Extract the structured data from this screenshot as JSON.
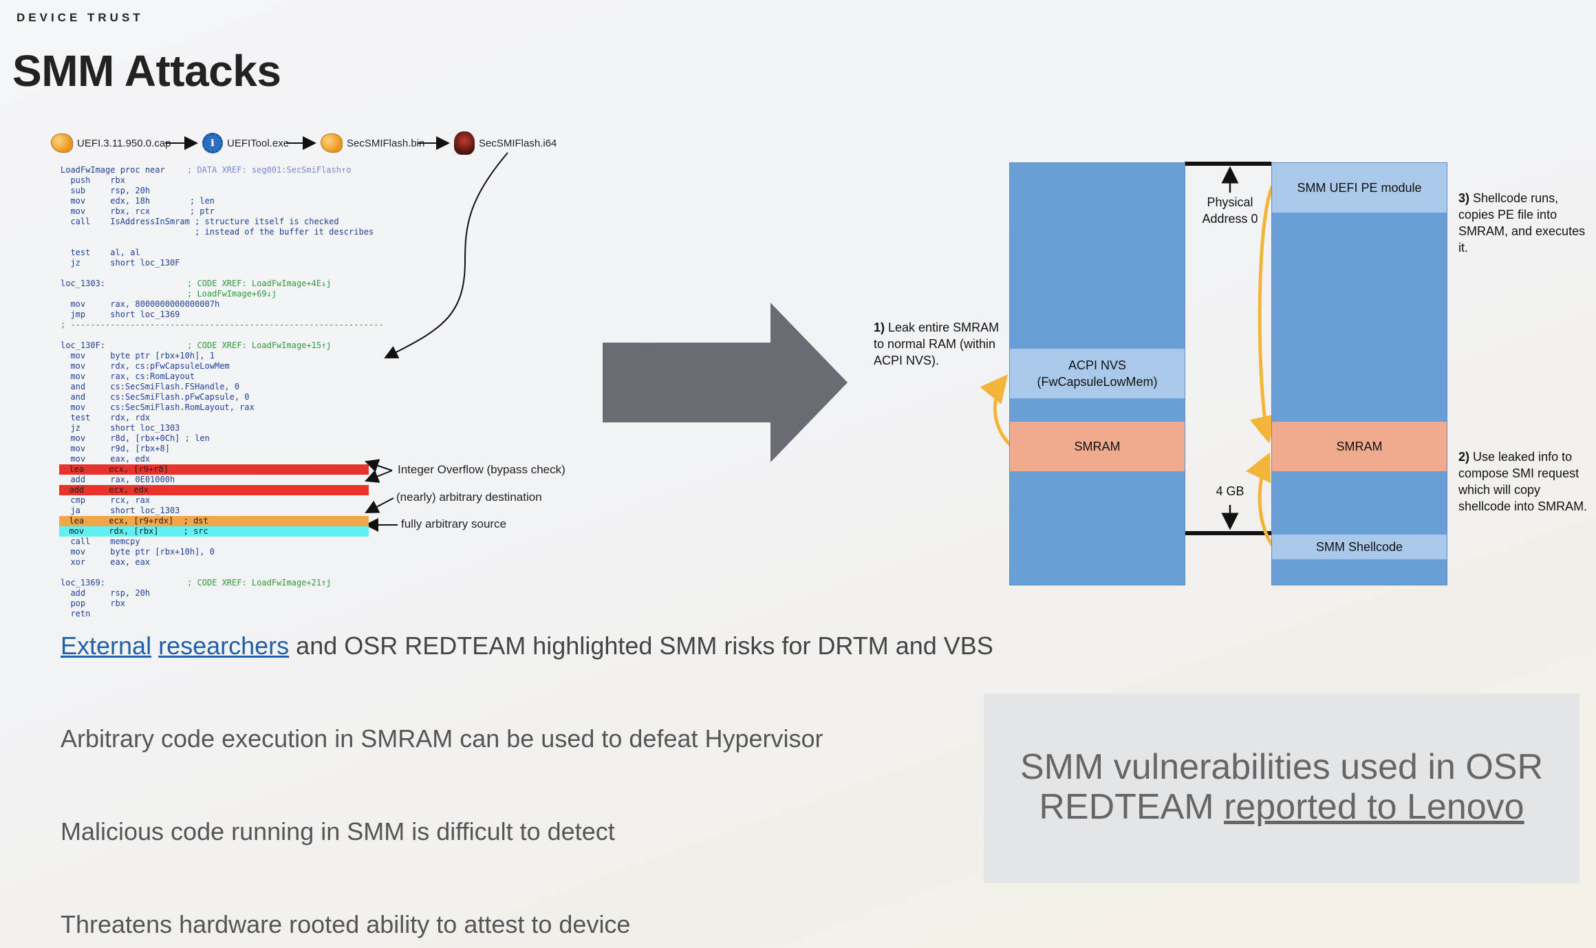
{
  "header": {
    "kicker": "DEVICE TRUST",
    "title": "SMM Attacks"
  },
  "flow": [
    {
      "label": "UEFI.3.11.950.0.cap",
      "icon": "capsule-file-icon"
    },
    {
      "label": "UEFITool.exe",
      "icon": "uefitool-gear-icon"
    },
    {
      "label": "SecSMIFlash.bin",
      "icon": "binary-file-icon"
    },
    {
      "label": "SecSMIFlash.i64",
      "icon": "ida-database-icon"
    }
  ],
  "code_lines": [
    "LoadFwImage proc near",
    "  push    rbx",
    "  sub     rsp, 20h",
    "  mov     edx, 18h        ; len",
    "  mov     rbx, rcx        ; ptr",
    "  call    IsAddressInSmram ; structure itself is checked",
    "                           ; instead of the buffer it describes",
    "",
    "  test    al, al",
    "  jz      short loc_130F",
    "",
    "loc_1303:",
    "",
    "  mov     rax, 8000000000000007h",
    "  jmp     short loc_1369",
    "; ---------------------------------------------------------------",
    "",
    "loc_130F:",
    "  mov     byte ptr [rbx+10h], 1",
    "  mov     rdx, cs:pFwCapsuleLowMem",
    "  mov     rax, cs:RomLayout",
    "  and     cs:SecSmiFlash.FSHandle, 0",
    "  and     cs:SecSmiFlash.pFwCapsule, 0",
    "  mov     cs:SecSmiFlash.RomLayout, rax",
    "  test    rdx, rdx",
    "  jz      short loc_1303",
    "  mov     r8d, [rbx+0Ch] ; len",
    "  mov     r9d, [rbx+8]",
    "  mov     eax, edx",
    "  lea     ecx, [r9+r8]",
    "  add     rax, 0E01000h",
    "  add     ecx, edx",
    "  cmp     rcx, rax",
    "  ja      short loc_1303",
    "  lea     ecx, [r9+rdx]  ; dst",
    "  mov     rdx, [rbx]     ; src",
    "  call    memcpy",
    "  mov     byte ptr [rbx+10h], 0",
    "  xor     eax, eax",
    "",
    "loc_1369:",
    "  add     rsp, 20h",
    "  pop     rbx",
    "  retn"
  ],
  "code_comments": {
    "xref_1": "; DATA XREF: seg001:SecSmiFlash↑o",
    "xref_2": "; CODE XREF: LoadFwImage+4E↓j",
    "xref_3": "; LoadFwImage+69↓j",
    "xref_4": "; CODE XREF: LoadFwImage+15↑j",
    "xref_5": "; CODE XREF: LoadFwImage+21↑j"
  },
  "callouts": {
    "overflow": "Integer Overflow (bypass check)",
    "dest": "(nearly) arbitrary destination",
    "src": "fully arbitrary source"
  },
  "diagram": {
    "step1_num": "1)",
    "step1": " Leak entire SMRAM to normal RAM (within ACPI NVS).",
    "step2_num": "2)",
    "step2": " Use leaked info to compose SMI request which will copy shellcode into SMRAM.",
    "step3_num": "3)",
    "step3": " Shellcode runs, copies PE file into SMRAM, and executes it.",
    "acpi": "ACPI NVS (FwCapsuleLowMem)",
    "smram_left": "SMRAM",
    "smram_right": "SMRAM",
    "pe_module": "SMM UEFI PE module",
    "shellcode": "SMM Shellcode",
    "phys_addr": "Physical Address 0",
    "four_gb": "4 GB",
    "colors": {
      "memory": "#6a9fd6",
      "light": "#aac9ea",
      "smram": "#f0aa8e",
      "arrow": "#f2b53a"
    }
  },
  "bullets": {
    "b1_link1": "External",
    "b1_link2": "researchers",
    "b1_rest": " and OSR REDTEAM highlighted SMM risks for DRTM and VBS",
    "b2": "Arbitrary code execution in SMRAM can be used to defeat Hypervisor",
    "b3": "Malicious code running in SMM is difficult to detect",
    "b4": "Threatens hardware rooted ability to attest to device"
  },
  "panel": {
    "line1": "SMM vulnerabilities used in OSR",
    "line2_plain": "REDTEAM ",
    "line2_link": "reported to Lenovo"
  }
}
